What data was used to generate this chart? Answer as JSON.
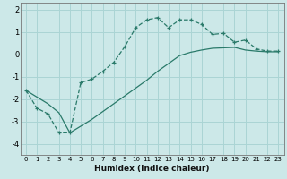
{
  "xlabel": "Humidex (Indice chaleur)",
  "background_color": "#cce8e8",
  "grid_color": "#aad4d4",
  "line_color": "#2a7a6a",
  "ylim": [
    -4.5,
    2.3
  ],
  "xlim": [
    -0.5,
    23.5
  ],
  "yticks": [
    -4,
    -3,
    -2,
    -1,
    0,
    1,
    2
  ],
  "xticks": [
    0,
    1,
    2,
    3,
    4,
    5,
    6,
    7,
    8,
    9,
    10,
    11,
    12,
    13,
    14,
    15,
    16,
    17,
    18,
    19,
    20,
    21,
    22,
    23
  ],
  "line1_x": [
    0,
    1,
    2,
    3,
    4,
    5,
    6,
    7,
    8,
    9,
    10,
    11,
    12,
    13,
    14,
    15,
    16,
    17,
    18,
    19,
    20,
    21,
    22,
    23
  ],
  "line1_y": [
    -1.6,
    -2.4,
    -2.65,
    -3.5,
    -3.5,
    -1.25,
    -1.1,
    -0.75,
    -0.35,
    0.35,
    1.2,
    1.55,
    1.65,
    1.2,
    1.55,
    1.55,
    1.35,
    0.9,
    0.95,
    0.55,
    0.65,
    0.25,
    0.15,
    0.15
  ],
  "line2_x": [
    0,
    1,
    2,
    3,
    4,
    5,
    6,
    7,
    8,
    9,
    10,
    11,
    12,
    13,
    14,
    15,
    16,
    17,
    18,
    19,
    20,
    21,
    22,
    23
  ],
  "line2_y": [
    -1.6,
    -1.9,
    -2.2,
    -2.6,
    -3.5,
    -3.2,
    -2.9,
    -2.55,
    -2.2,
    -1.85,
    -1.5,
    -1.15,
    -0.75,
    -0.4,
    -0.05,
    0.1,
    0.2,
    0.28,
    0.3,
    0.32,
    0.2,
    0.15,
    0.12,
    0.12
  ]
}
